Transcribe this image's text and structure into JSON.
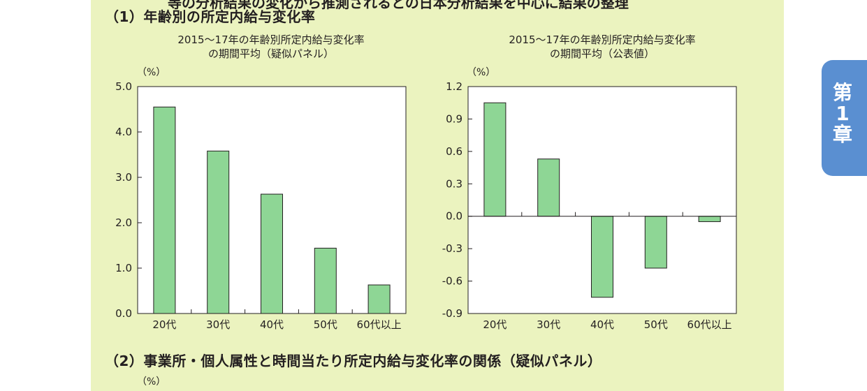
{
  "header_cut_text": "等の分析結果の変化から推測されるとの日本分析結果を中心に結果の整理",
  "section1_title": "（1）年齢別の所定内給与変化率",
  "section2_title": "（2）事業所・個人属性と時間当たり所定内給与変化率の関係（疑似パネル）",
  "section2_unit": "（%）",
  "side_tab": [
    "第",
    "1",
    "章"
  ],
  "colors": {
    "bar": "#8ed695",
    "bar_stroke": "#231f20",
    "panel": "#ebf3bf",
    "tab": "#5a8fd1"
  },
  "chart_data": [
    {
      "type": "bar",
      "title": [
        "2015〜17年の年齢別所定内給与変化率",
        "の期間平均（疑似パネル）"
      ],
      "unit": "（%）",
      "categories": [
        "20代",
        "30代",
        "40代",
        "50代",
        "60代以上"
      ],
      "values": [
        4.55,
        3.58,
        2.63,
        1.44,
        0.63
      ],
      "ylim": [
        0,
        5
      ],
      "yticks": [
        "0.0",
        "1.0",
        "2.0",
        "3.0",
        "4.0",
        "5.0"
      ],
      "ytick_values": [
        0,
        1,
        2,
        3,
        4,
        5
      ]
    },
    {
      "type": "bar",
      "title": [
        "2015〜17年の年齢別所定内給与変化率",
        "の期間平均（公表値）"
      ],
      "unit": "（%）",
      "categories": [
        "20代",
        "30代",
        "40代",
        "50代",
        "60代以上"
      ],
      "values": [
        1.05,
        0.53,
        -0.75,
        -0.48,
        -0.05
      ],
      "ylim": [
        -0.9,
        1.2
      ],
      "yticks": [
        "-0.9",
        "-0.6",
        "-0.3",
        "0.0",
        "0.3",
        "0.6",
        "0.9",
        "1.2"
      ],
      "ytick_values": [
        -0.9,
        -0.6,
        -0.3,
        0,
        0.3,
        0.6,
        0.9,
        1.2
      ]
    }
  ]
}
